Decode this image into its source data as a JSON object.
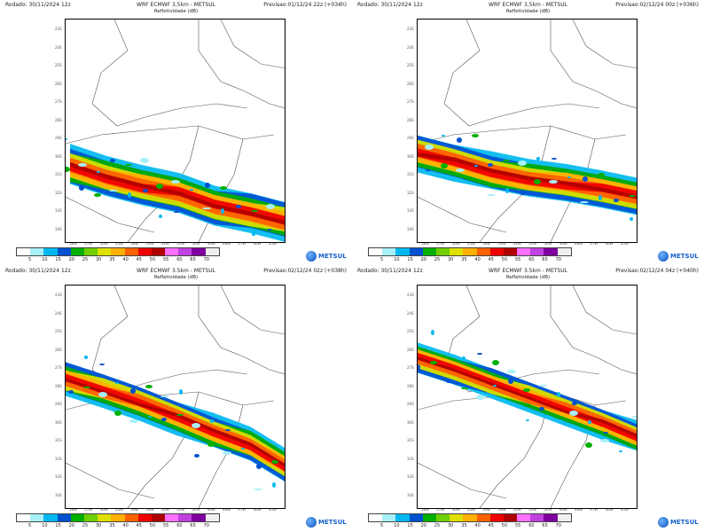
{
  "panels": [
    {
      "run": "Rodado: 30/11/2024 12z",
      "model": "WRF ECMWF 3.5km - METSUL",
      "forecast": "Previsao:01/12/24 22z (+034h)",
      "field": "Refletividade (dB)"
    },
    {
      "run": "Rodado: 30/11/2024 12z",
      "model": "WRF ECMWF 3.5km - METSUL",
      "forecast": "Previsao:02/12/24 00z (+036h)",
      "field": "Refletividade (dB)"
    },
    {
      "run": "Rodado: 30/11/2024 12z",
      "model": "WRF ECMWF 3.5km - METSUL",
      "forecast": "Previsao:02/12/24 02z (+038h)",
      "field": "Refletividade (dB)"
    },
    {
      "run": "Rodado: 30/11/2024 12z",
      "model": "WRF ECMWF 3.5km - METSUL",
      "forecast": "Previsao:02/12/24 04z (+040h)",
      "field": "Refletividade (dB)"
    }
  ],
  "lat_labels": [
    "23S",
    "24S",
    "25S",
    "26S",
    "27S",
    "28S",
    "29S",
    "30S",
    "31S",
    "32S",
    "33S",
    "34S"
  ],
  "lon_labels": [
    "58W",
    "57W",
    "56W",
    "55W",
    "54W",
    "53W",
    "52W",
    "51W",
    "50W",
    "49W",
    "48W",
    "47W",
    "46W",
    "45W"
  ],
  "colorbar": {
    "ticks": [
      "5",
      "10",
      "15",
      "20",
      "25",
      "30",
      "35",
      "40",
      "45",
      "50",
      "55",
      "60",
      "65",
      "70"
    ],
    "colors": [
      "#ffffff",
      "#a8f0f8",
      "#00b8f0",
      "#0050d0",
      "#00b000",
      "#70d000",
      "#e0e000",
      "#ffb000",
      "#ff6000",
      "#f00000",
      "#b00000",
      "#ff70ff",
      "#c040e0",
      "#8000a0",
      "#f0f0f0"
    ]
  },
  "logo": {
    "text": "METSUL",
    "icon": "globe-icon"
  },
  "bands": [
    {
      "x0": 5,
      "x1": 250,
      "yc": [
        165,
        178,
        188,
        196,
        210,
        218,
        228
      ],
      "w": 45
    },
    {
      "x0": 0,
      "x1": 250,
      "yc": [
        150,
        160,
        172,
        180,
        185,
        192,
        200
      ],
      "w": 42
    },
    {
      "x0": 0,
      "x1": 250,
      "yc": [
        105,
        118,
        132,
        148,
        165,
        180,
        205
      ],
      "w": 38
    },
    {
      "x0": 0,
      "x1": 250,
      "yc": [
        82,
        95,
        110,
        125,
        140,
        155,
        172
      ],
      "w": 34
    }
  ]
}
